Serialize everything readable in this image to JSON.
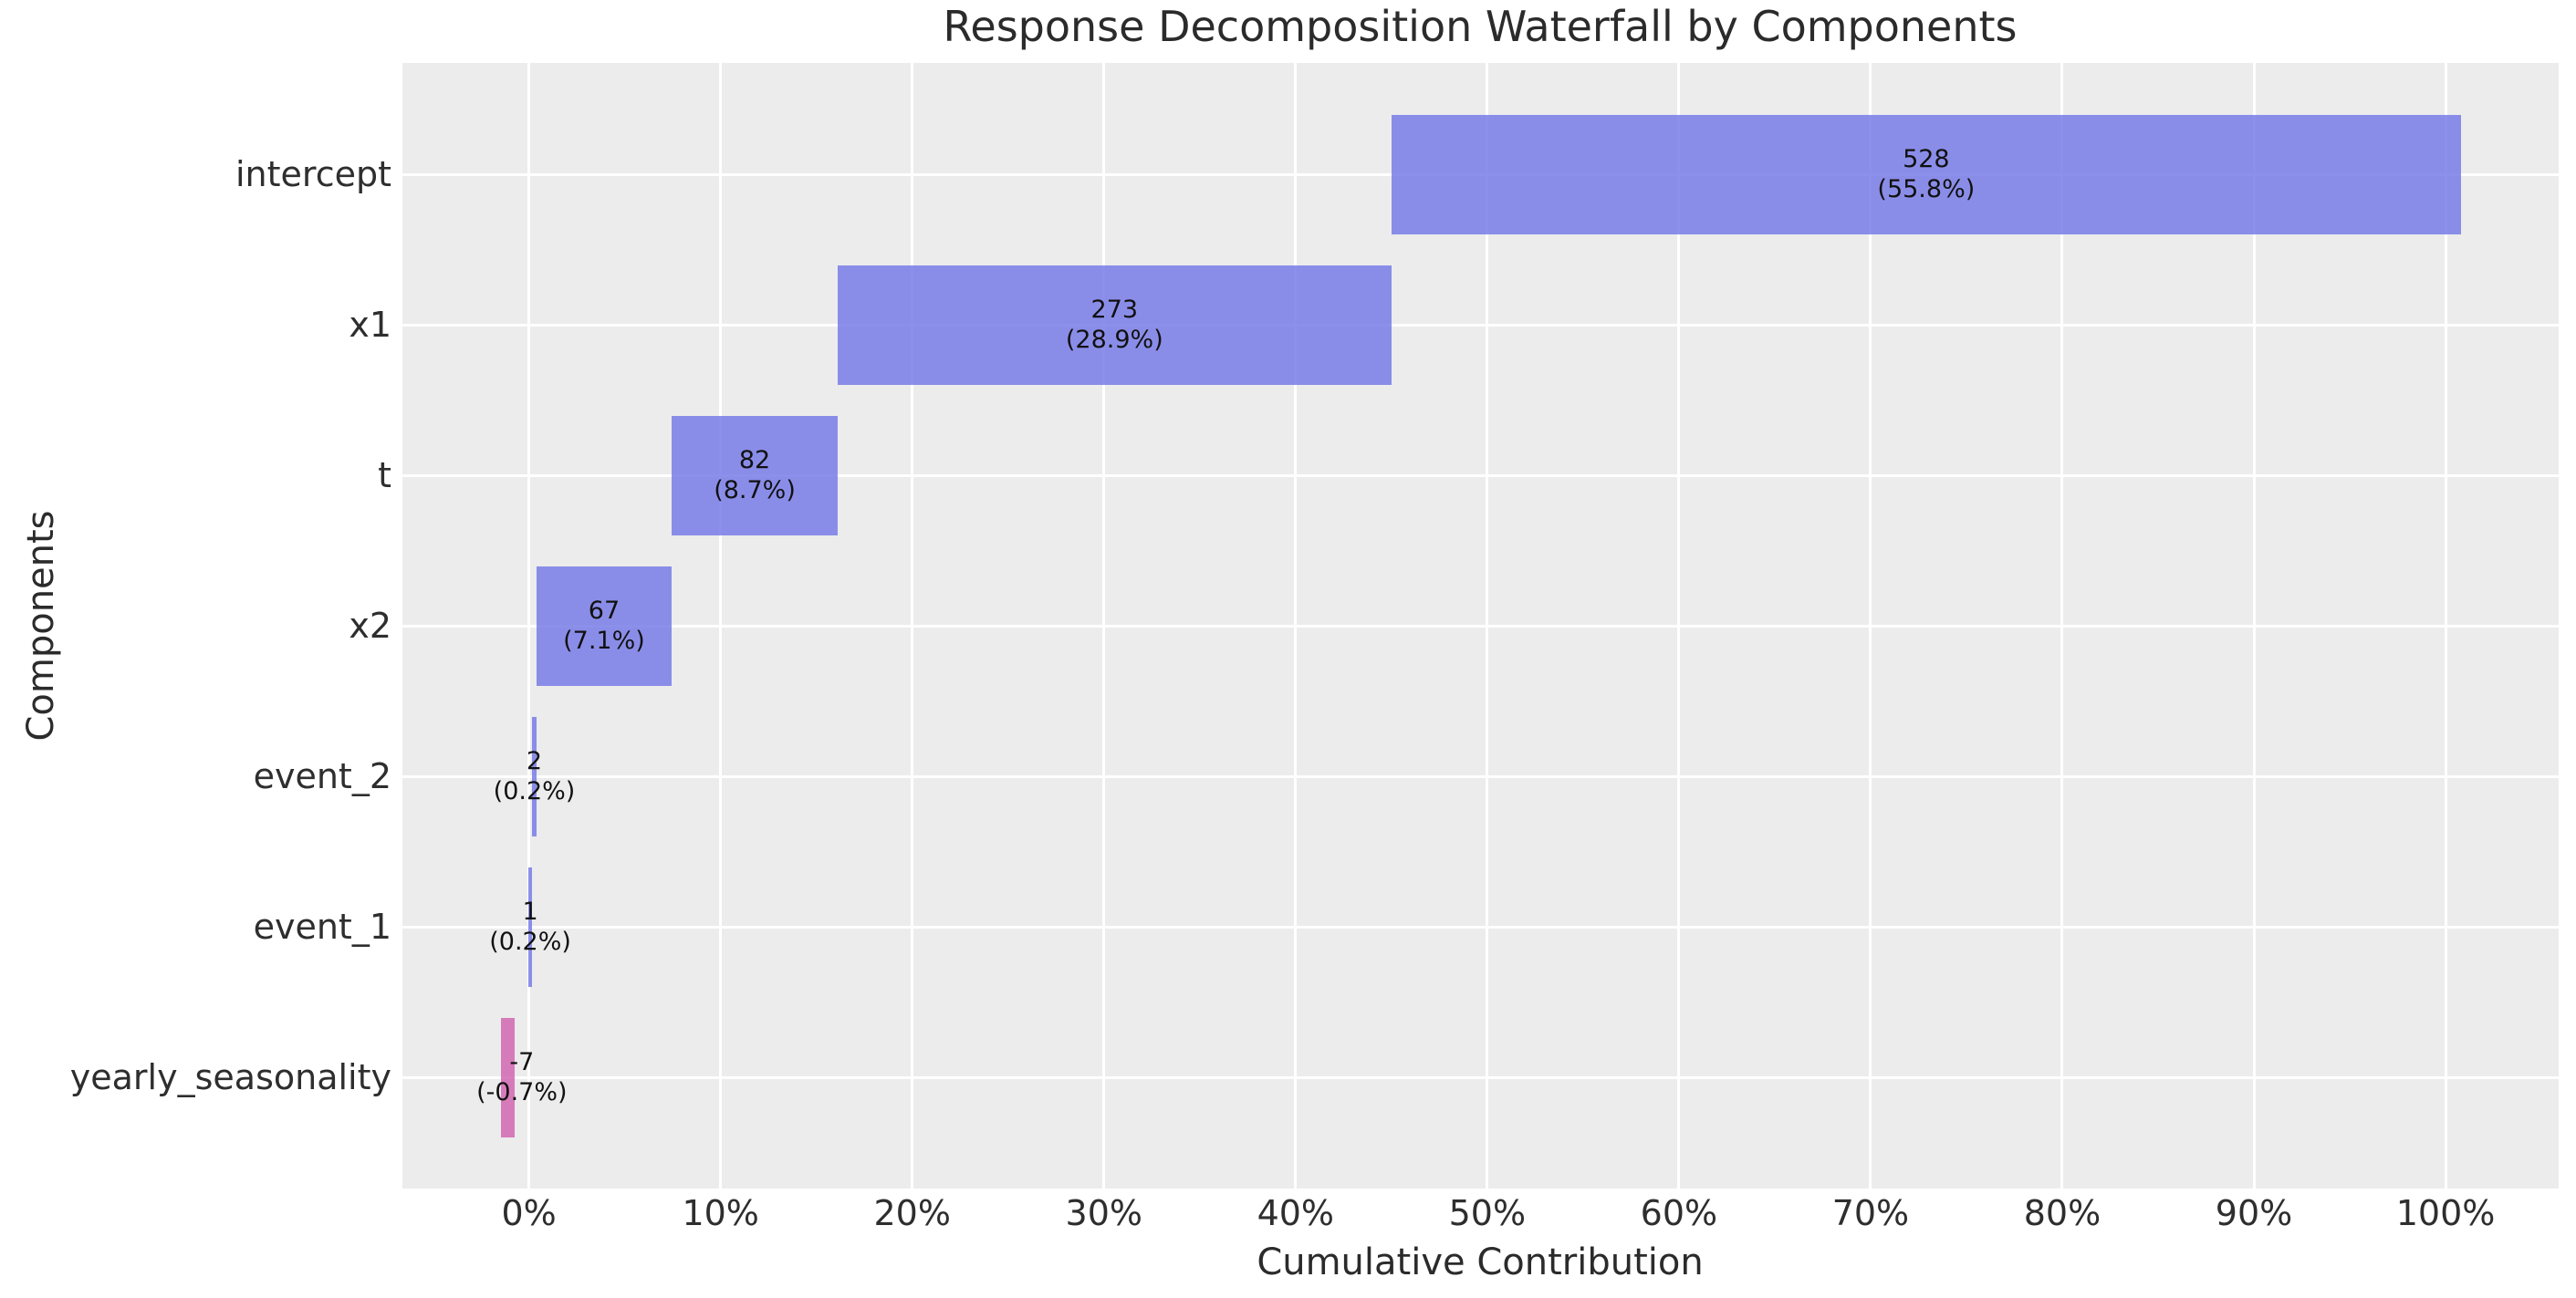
{
  "chart_data": {
    "type": "bar",
    "subtype": "horizontal-waterfall",
    "title": "Response Decomposition Waterfall by Components",
    "xlabel": "Cumulative Contribution",
    "ylabel": "Components",
    "grid": true,
    "legend": "none",
    "xlim": [
      -6.6,
      105.9
    ],
    "xticks": [
      0,
      10,
      20,
      30,
      40,
      50,
      60,
      70,
      80,
      90,
      100
    ],
    "xtick_labels": [
      "0%",
      "10%",
      "20%",
      "30%",
      "40%",
      "50%",
      "60%",
      "70%",
      "80%",
      "90%",
      "100%"
    ],
    "categories": [
      "intercept",
      "x1",
      "t",
      "x2",
      "event_2",
      "event_1",
      "yearly_seasonality"
    ],
    "values": [
      528,
      273,
      82,
      67,
      2,
      1,
      -7
    ],
    "value_labels": [
      "528",
      "273",
      "82",
      "67",
      "2",
      "1",
      "-7"
    ],
    "pct_labels": [
      "(55.8%)",
      "(28.9%)",
      "(8.7%)",
      "(7.1%)",
      "(0.2%)",
      "(0.2%)",
      "(-0.7%)"
    ],
    "pct_values": [
      55.8,
      28.9,
      8.7,
      7.1,
      0.2,
      0.2,
      -0.7
    ],
    "segments_pct": [
      [
        45.0,
        100.8
      ],
      [
        16.1,
        45.0
      ],
      [
        7.45,
        16.1
      ],
      [
        0.38,
        7.45
      ],
      [
        0.17,
        0.38
      ],
      [
        -0.02,
        0.15
      ],
      [
        -1.48,
        -0.76
      ]
    ],
    "label_center_pct": [
      72.9,
      30.55,
      11.78,
      3.92,
      0.28,
      0.07,
      -0.37
    ],
    "colors": {
      "positive_bar": "#8a8de8",
      "negative_bar": "#d67bba",
      "positive_bar_rgba": "rgba(121,124,231,0.85)",
      "negative_bar_rgba": "rgba(210,103,177,0.85)",
      "plot_background": "#ececec",
      "gridline": "#ffffff",
      "text": "#2b2b2b",
      "bar_label_text": "#111111"
    }
  }
}
